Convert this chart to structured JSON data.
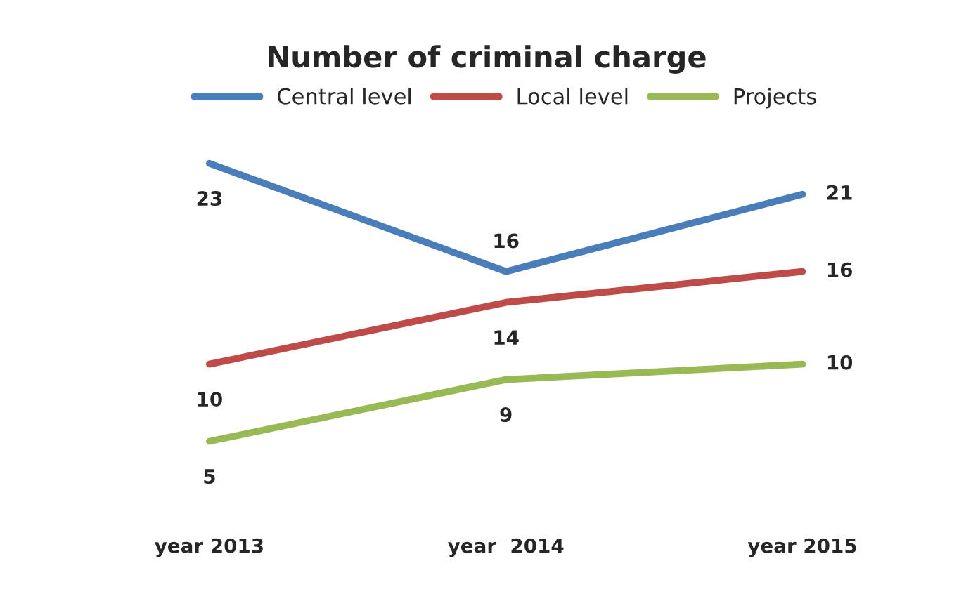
{
  "chart_data": {
    "type": "line",
    "title": "Number of criminal charge",
    "categories": [
      "year 2013",
      "year  2014",
      "year 2015"
    ],
    "series": [
      {
        "name": "Central level",
        "color": "#4a7ebb",
        "values": [
          23,
          16,
          21
        ]
      },
      {
        "name": "Local level",
        "color": "#be4b48",
        "values": [
          10,
          14,
          16
        ]
      },
      {
        "name": "Projects",
        "color": "#98b954",
        "values": [
          5,
          9,
          10
        ]
      }
    ],
    "data_labels": true,
    "legend": "top",
    "grid": false,
    "tick_labels": "x",
    "marker": "none",
    "line_style": "solid"
  }
}
